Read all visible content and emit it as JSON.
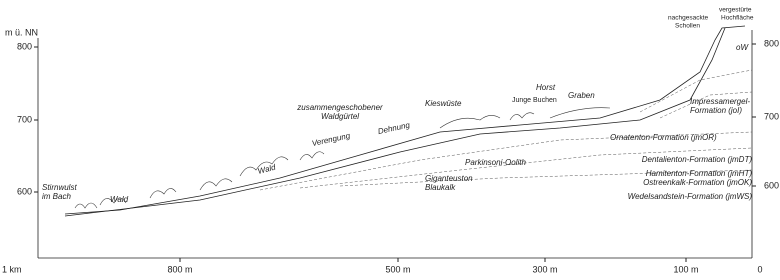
{
  "axis": {
    "unit": "m ü. NN",
    "left_ticks": [
      "800",
      "700",
      "600"
    ],
    "right_ticks": [
      "800",
      "700",
      "600"
    ],
    "bottom_ticks": [
      "1 km",
      "800 m",
      "500 m",
      "300 m",
      "100 m",
      "0"
    ]
  },
  "labels": {
    "stirnwulst": [
      "Stirnwulst",
      "im Bach"
    ],
    "wald_1": "Wald",
    "wald_2": "Wald",
    "waldguertel": [
      "zusammengeschobener",
      "Waldgürtel"
    ],
    "verengung": "Verengung",
    "dehnung": "Dehnung",
    "kieswueste": "Kieswüste",
    "horst": "Horst",
    "junge_buchen": "Junge Buchen",
    "graben": "Graben",
    "schollen": [
      "nachgesackte",
      "Schollen"
    ],
    "hochflaeche": [
      "vergestürte",
      "Hochfläche"
    ],
    "ow": "oW",
    "impressamergel": [
      "Impressamergel-",
      "Formation (joI)"
    ],
    "ornatenton": "Ornatenton-Formation (jmOR)",
    "parkinsoni": "Parkinsoni-Oolith",
    "dentalienton": "Dentalienton-Formation (jmDT)",
    "hamitenton": "Hamitenton-Formation (jmHT)",
    "ostreenkalk": "Ostreenkalk-Formation (jmOK)",
    "wedelsandstein": "Wedelsandstein-Formation (jmWS)",
    "giganteuston": [
      "Giganteuston",
      "Blaukalk"
    ]
  }
}
